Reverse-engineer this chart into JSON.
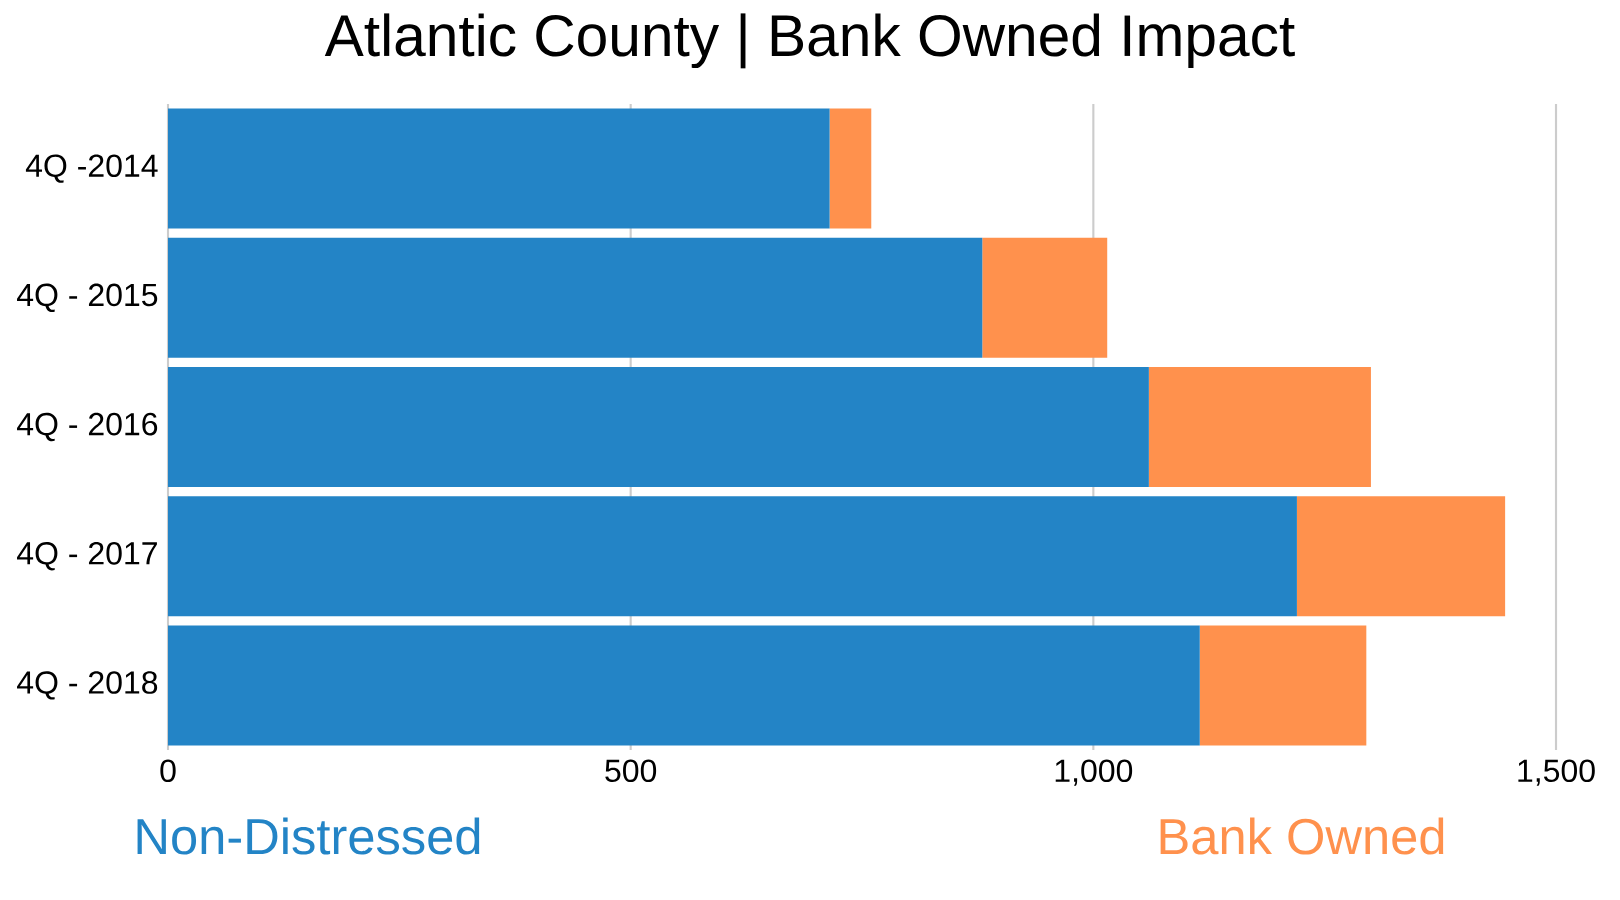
{
  "chart_data": {
    "type": "bar",
    "orientation": "horizontal",
    "stacked": true,
    "title": "Atlantic County | Bank Owned Impact",
    "categories": [
      "4Q -2014",
      "4Q - 2015",
      "4Q - 2016",
      "4Q - 2017",
      "4Q - 2018"
    ],
    "series": [
      {
        "name": "Non-Distressed",
        "color": "#2384c6",
        "values": [
          715,
          880,
          1060,
          1220,
          1115
        ]
      },
      {
        "name": "Bank Owned",
        "color": "#ff914d",
        "values": [
          45,
          135,
          240,
          225,
          180
        ]
      }
    ],
    "xlim": [
      0,
      1500
    ],
    "xticks": [
      0,
      {
        "value": 500,
        "label": "500"
      },
      {
        "value": 1000,
        "label": "1,000"
      },
      {
        "value": 1500,
        "label": "1,500"
      }
    ],
    "grid": "x",
    "legend": "bottom"
  }
}
